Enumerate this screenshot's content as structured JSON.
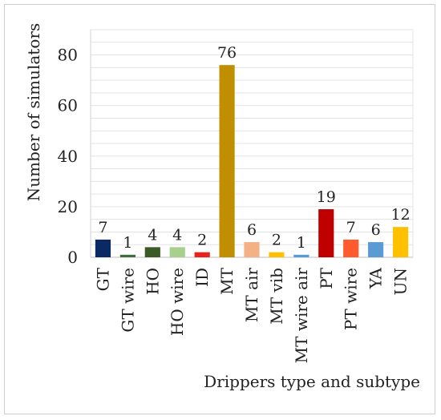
{
  "chart_data": {
    "type": "bar",
    "title": "",
    "xlabel": "Drippers type and subtype",
    "ylabel": "Number of simulators",
    "ylim": [
      0,
      90
    ],
    "yticks": [
      0,
      20,
      40,
      60,
      80
    ],
    "grid": true,
    "legend": "none",
    "categories": [
      "GT",
      "GT wire",
      "HO",
      "HO wire",
      "ID",
      "MT",
      "MT air",
      "MT vib",
      "MT wire air",
      "PT",
      "PT wire",
      "YA",
      "UN"
    ],
    "values": [
      7,
      1,
      4,
      4,
      2,
      76,
      6,
      2,
      1,
      19,
      7,
      6,
      12
    ],
    "data_labels": [
      "7",
      "1",
      "4",
      "4",
      "2",
      "76",
      "6",
      "2",
      "1",
      "19",
      "7",
      "6",
      "12"
    ],
    "colors": [
      "#0b2a63",
      "#3f6e3f",
      "#3b5a26",
      "#a7d08c",
      "#e8231d",
      "#c08f00",
      "#f4b183",
      "#ffc000",
      "#5b9bd5",
      "#c00000",
      "#ff5b2e",
      "#5b9bd5",
      "#ffc000"
    ]
  }
}
